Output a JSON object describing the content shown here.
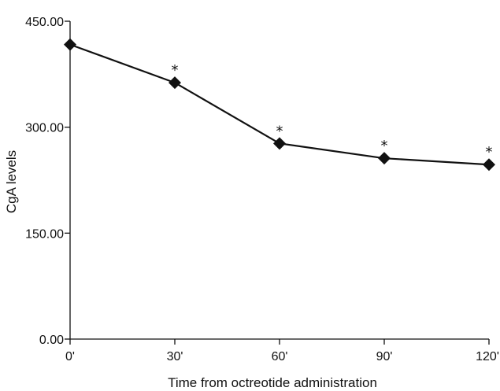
{
  "chart_data": {
    "type": "line",
    "title": "",
    "xlabel": "Time from octreotide administration",
    "ylabel": "CgA levels",
    "categories": [
      "0'",
      "30'",
      "60'",
      "90'",
      "120'"
    ],
    "x": [
      0,
      30,
      60,
      90,
      120
    ],
    "xlim": [
      0,
      120
    ],
    "ylim": [
      0,
      450
    ],
    "yticks": [
      0,
      150,
      300,
      450
    ],
    "ytick_labels": [
      "0.00",
      "150.00",
      "300.00",
      "450.00"
    ],
    "grid": false,
    "legend": "none",
    "series": [
      {
        "values": [
          417,
          363,
          277,
          256,
          247
        ],
        "marker": "diamond",
        "color": "#111111",
        "annotations": [
          "",
          "*",
          "*",
          "*",
          "*"
        ]
      }
    ]
  }
}
